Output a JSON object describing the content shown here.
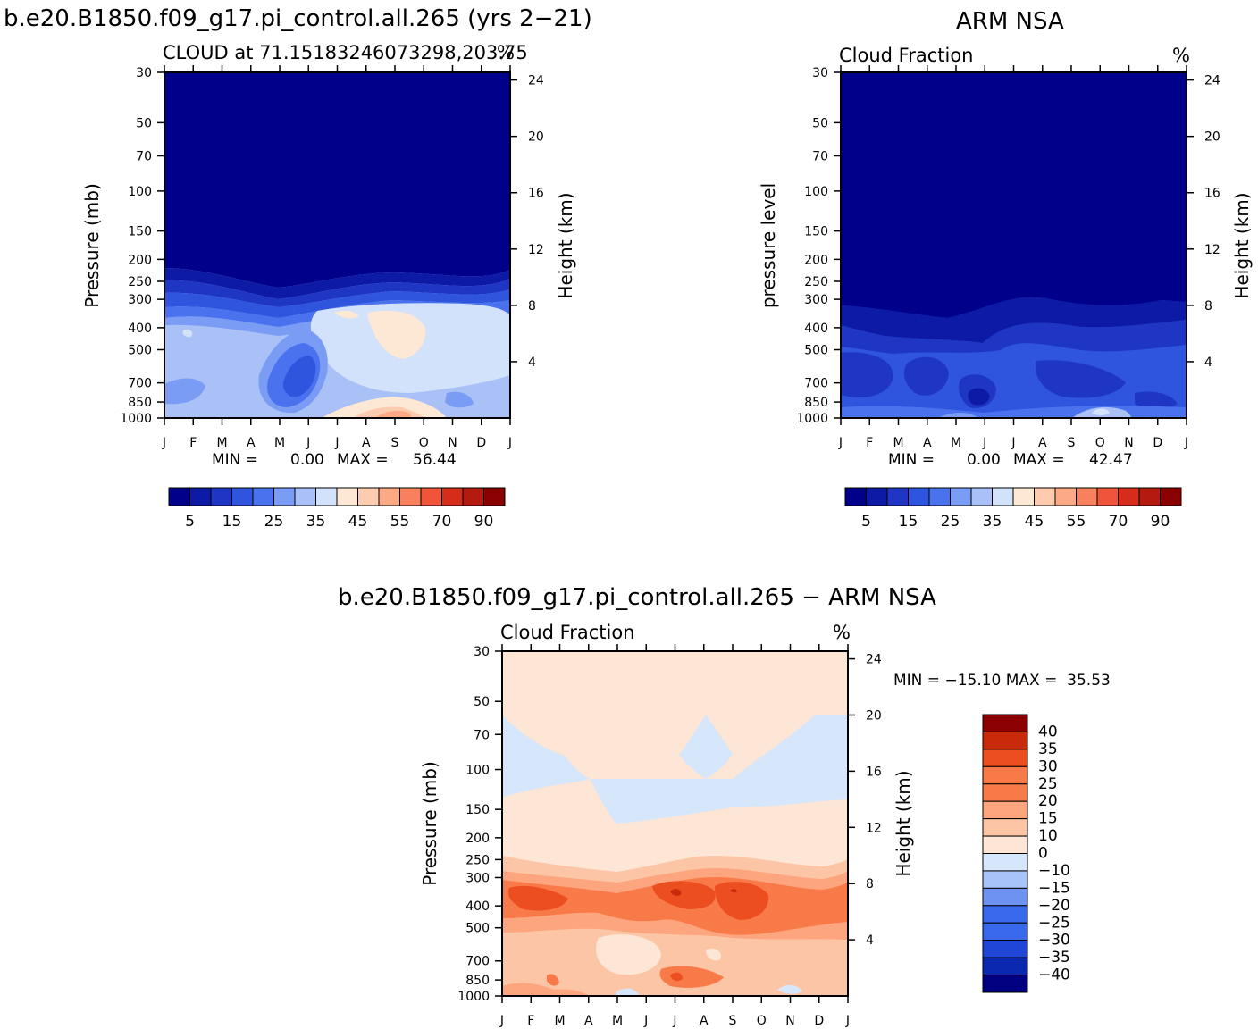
{
  "colors": {
    "positive_scale": [
      "#00008b",
      "#0d1aa6",
      "#1f36c4",
      "#2f55de",
      "#4a72ee",
      "#7a9cf4",
      "#a9c1f7",
      "#d2e2fa",
      "#fde7d5",
      "#fdccb0",
      "#fca986",
      "#f9805e",
      "#f0543a",
      "#d62c1c",
      "#b41a10",
      "#8b0000"
    ],
    "diff_scale": [
      "#000080",
      "#0a28b0",
      "#1f46d6",
      "#3a68ec",
      "#6e92f2",
      "#a8c3f7",
      "#d6e6fb",
      "#fde6d5",
      "#fcc6a6",
      "#fca57e",
      "#f97a49",
      "#ec4e20",
      "#c92a0a",
      "#8b0000"
    ]
  },
  "panels": {
    "p1": {
      "title": "b.e20.B1850.f09_g17.pi_control.all.265 (yrs 2−21)",
      "sub_left": "CLOUD at 71.15183246073298,203.75",
      "sub_right": "%",
      "ylabel": "Pressure (mb)",
      "ylabel_right": "Height (km)",
      "min_label": "MIN =",
      "min_value": "0.00",
      "max_label": "MAX =",
      "max_value": "56.44"
    },
    "p2": {
      "title": "ARM NSA",
      "sub_left": "Cloud Fraction",
      "sub_right": "%",
      "ylabel": "pressure level",
      "ylabel_right": "Height (km)",
      "min_label": "MIN =",
      "min_value": "0.00",
      "max_label": "MAX =",
      "max_value": "42.47"
    },
    "p3": {
      "title": "b.e20.B1850.f09_g17.pi_control.all.265 − ARM NSA",
      "sub_left": "Cloud Fraction",
      "sub_right": "%",
      "ylabel": "Pressure (mb)",
      "ylabel_right": "Height (km)",
      "minmax_text": "MIN = −15.10 MAX =  35.53"
    }
  },
  "chart_data": [
    {
      "type": "heatmap",
      "title": "b.e20.B1850.f09_g17.pi_control.all.265 (yrs 2−21)",
      "subtitle": "CLOUD at 71.15183246073298,203.75",
      "units": "%",
      "ylabel": "Pressure (mb)",
      "ylabel_right": "Height (km)",
      "x_ticks": [
        "J",
        "F",
        "M",
        "A",
        "M",
        "J",
        "J",
        "A",
        "S",
        "O",
        "N",
        "D",
        "J"
      ],
      "y_ticks": [
        30,
        50,
        70,
        100,
        150,
        200,
        250,
        300,
        400,
        500,
        700,
        850,
        1000
      ],
      "y_right_ticks": [
        24,
        20,
        16,
        12,
        8,
        4
      ],
      "ylim": [
        30,
        1000
      ],
      "y_scale": "log",
      "colorbar_labels": [
        "5",
        "15",
        "25",
        "35",
        "45",
        "55",
        "70",
        "90"
      ],
      "min": 0.0,
      "max": 56.44
    },
    {
      "type": "heatmap",
      "title": "ARM NSA",
      "subtitle": "Cloud Fraction",
      "units": "%",
      "ylabel": "pressure level",
      "ylabel_right": "Height (km)",
      "x_ticks": [
        "J",
        "F",
        "M",
        "A",
        "M",
        "J",
        "J",
        "A",
        "S",
        "O",
        "N",
        "D",
        "J"
      ],
      "y_ticks": [
        30,
        50,
        70,
        100,
        150,
        200,
        250,
        300,
        400,
        500,
        700,
        850,
        1000
      ],
      "y_right_ticks": [
        24,
        20,
        16,
        12,
        8,
        4
      ],
      "ylim": [
        30,
        1000
      ],
      "y_scale": "log",
      "colorbar_labels": [
        "5",
        "15",
        "25",
        "35",
        "45",
        "55",
        "70",
        "90"
      ],
      "min": 0.0,
      "max": 42.47
    },
    {
      "type": "heatmap",
      "title": "b.e20.B1850.f09_g17.pi_control.all.265 − ARM NSA",
      "subtitle": "Cloud Fraction",
      "units": "%",
      "ylabel": "Pressure (mb)",
      "ylabel_right": "Height (km)",
      "x_ticks": [
        "J",
        "F",
        "M",
        "A",
        "M",
        "J",
        "J",
        "A",
        "S",
        "O",
        "N",
        "D",
        "J"
      ],
      "y_ticks": [
        30,
        50,
        70,
        100,
        150,
        200,
        250,
        300,
        400,
        500,
        700,
        850,
        1000
      ],
      "y_right_ticks": [
        24,
        20,
        16,
        12,
        8,
        4
      ],
      "ylim": [
        30,
        1000
      ],
      "y_scale": "log",
      "colorbar_labels": [
        "40",
        "35",
        "30",
        "25",
        "20",
        "15",
        "10",
        "0",
        "−10",
        "−15",
        "−20",
        "−25",
        "−30",
        "−35",
        "−40"
      ],
      "min": -15.1,
      "max": 35.53
    }
  ]
}
